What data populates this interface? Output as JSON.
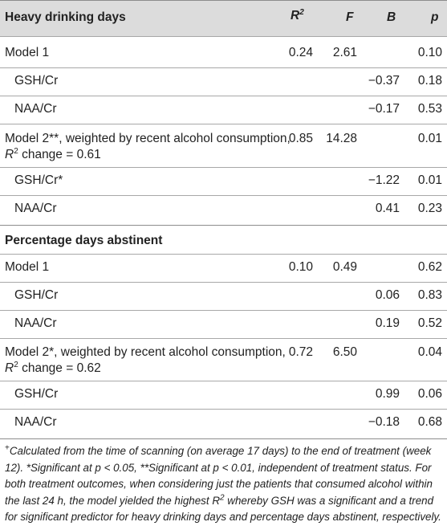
{
  "header": {
    "outcome": "Heavy drinking days",
    "col_r": "R",
    "col_r_sup": "2",
    "col_f": "F",
    "col_b": "B",
    "col_p": "p"
  },
  "section2": {
    "title": "Percentage days abstinent"
  },
  "rows1": [
    {
      "label": "Model 1",
      "r2": "0.24",
      "f": "2.61",
      "b": "",
      "p": "0.10"
    },
    {
      "label": "GSH/Cr",
      "r2": "",
      "f": "",
      "b": "−0.37",
      "p": "0.18"
    },
    {
      "label": "NAA/Cr",
      "r2": "",
      "f": "",
      "b": "−0.17",
      "p": "0.53"
    },
    {
      "label_a": "Model 2**, weighted by recent alcohol consumption,",
      "label_b_pre": "R",
      "label_b_sup": "2",
      "label_b_post": " change = 0.61",
      "r2": "0.85",
      "f": "14.28",
      "b": "",
      "p": "0.01"
    },
    {
      "label": "GSH/Cr*",
      "r2": "",
      "f": "",
      "b": "−1.22",
      "p": "0.01"
    },
    {
      "label": "NAA/Cr",
      "r2": "",
      "f": "",
      "b": "0.41",
      "p": "0.23"
    }
  ],
  "rows2": [
    {
      "label": "Model 1",
      "r2": "0.10",
      "f": "0.49",
      "b": "",
      "p": "0.62"
    },
    {
      "label": "GSH/Cr",
      "r2": "",
      "f": "",
      "b": "0.06",
      "p": "0.83"
    },
    {
      "label": "NAA/Cr",
      "r2": "",
      "f": "",
      "b": "0.19",
      "p": "0.52"
    },
    {
      "label_a": "Model 2*, weighted by recent alcohol consumption,",
      "label_b_pre": "R",
      "label_b_sup": "2",
      "label_b_post": " change = 0.62",
      "r2": "0.72",
      "f": "6.50",
      "b": "",
      "p": "0.04"
    },
    {
      "label": "GSH/Cr",
      "r2": "",
      "f": "",
      "b": "0.99",
      "p": "0.06"
    },
    {
      "label": "NAA/Cr",
      "r2": "",
      "f": "",
      "b": "−0.18",
      "p": "0.68"
    }
  ],
  "footnote": {
    "mark": "+",
    "text_1": "Calculated from the time of scanning (on average 17 days) to the end of treatment (week 12). *Significant at p < 0.05, **Significant at p < 0.01, independent of treatment status. For both treatment outcomes, when considering just the patients that consumed alcohol within the last 24 h, the model yielded the highest R",
    "sup": "2",
    "text_2": " whereby GSH was a significant and a trend for significant predictor for heavy drinking days and percentage days abstinent, respectively."
  }
}
